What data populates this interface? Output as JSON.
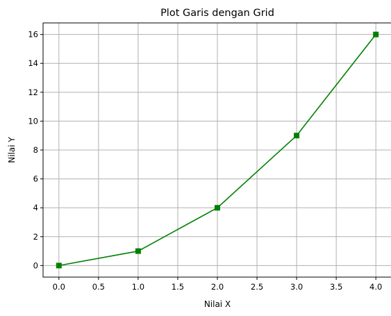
{
  "chart_data": {
    "type": "line",
    "title": "Plot Garis dengan Grid",
    "xlabel": "Nilai X",
    "ylabel": "Nilai Y",
    "xlim": [
      -0.2,
      4.2
    ],
    "ylim": [
      -0.8,
      16.8
    ],
    "x_ticks": [
      0.0,
      0.5,
      1.0,
      1.5,
      2.0,
      2.5,
      3.0,
      3.5,
      4.0
    ],
    "x_tick_labels": [
      "0.0",
      "0.5",
      "1.0",
      "1.5",
      "2.0",
      "2.5",
      "3.0",
      "3.5",
      "4.0"
    ],
    "y_ticks": [
      0,
      2,
      4,
      6,
      8,
      10,
      12,
      14,
      16
    ],
    "y_tick_labels": [
      "0",
      "2",
      "4",
      "6",
      "8",
      "10",
      "12",
      "14",
      "16"
    ],
    "grid": true,
    "series": [
      {
        "x": [
          0,
          1,
          2,
          3,
          4
        ],
        "y": [
          0,
          1,
          4,
          9,
          16
        ],
        "color": "#008000",
        "marker": "square"
      }
    ]
  }
}
